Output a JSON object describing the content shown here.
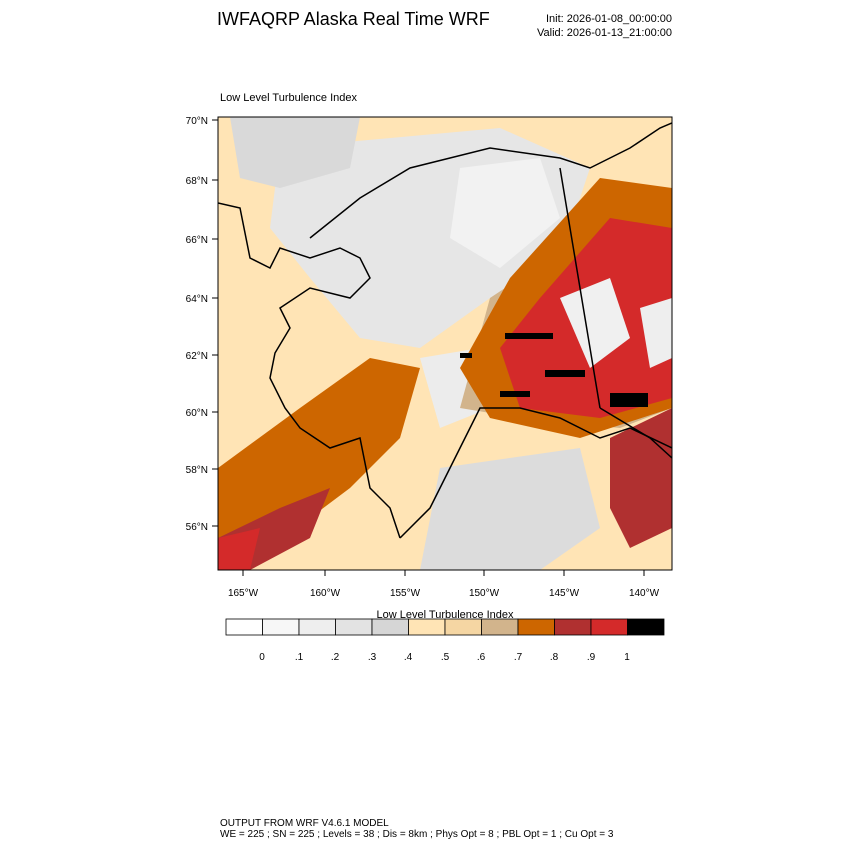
{
  "header": {
    "title": "IWFAQRP Alaska Real Time WRF",
    "init": "Init: 2026-01-08_00:00:00",
    "valid": "Valid: 2026-01-13_21:00:00"
  },
  "map": {
    "title": "Low Level Turbulence Index",
    "lat_labels": [
      "70°N",
      "68°N",
      "66°N",
      "64°N",
      "62°N",
      "60°N",
      "58°N",
      "56°N"
    ],
    "lon_labels": [
      "165°W",
      "160°W",
      "155°W",
      "150°W",
      "145°W",
      "140°W"
    ]
  },
  "colorbar": {
    "title": "Low Level Turbulence Index",
    "labels": [
      "0",
      ".1",
      ".2",
      ".3",
      ".4",
      ".5",
      ".6",
      ".7",
      ".8",
      ".9",
      "1"
    ],
    "colors": [
      "#ffffff",
      "#f7f7f7",
      "#eeeeee",
      "#e3e3e3",
      "#d6d6d6",
      "#ffe4b5",
      "#f5d6a3",
      "#d2b48c",
      "#cd6600",
      "#b03030",
      "#d42a2a",
      "#000000"
    ]
  },
  "footer": {
    "line1": "OUTPUT FROM WRF V4.6.1 MODEL",
    "line2": "WE = 225 ; SN = 225 ; Levels = 38 ; Dis = 8km ; Phys Opt = 8 ; PBL Opt = 1 ; Cu Opt = 3"
  }
}
